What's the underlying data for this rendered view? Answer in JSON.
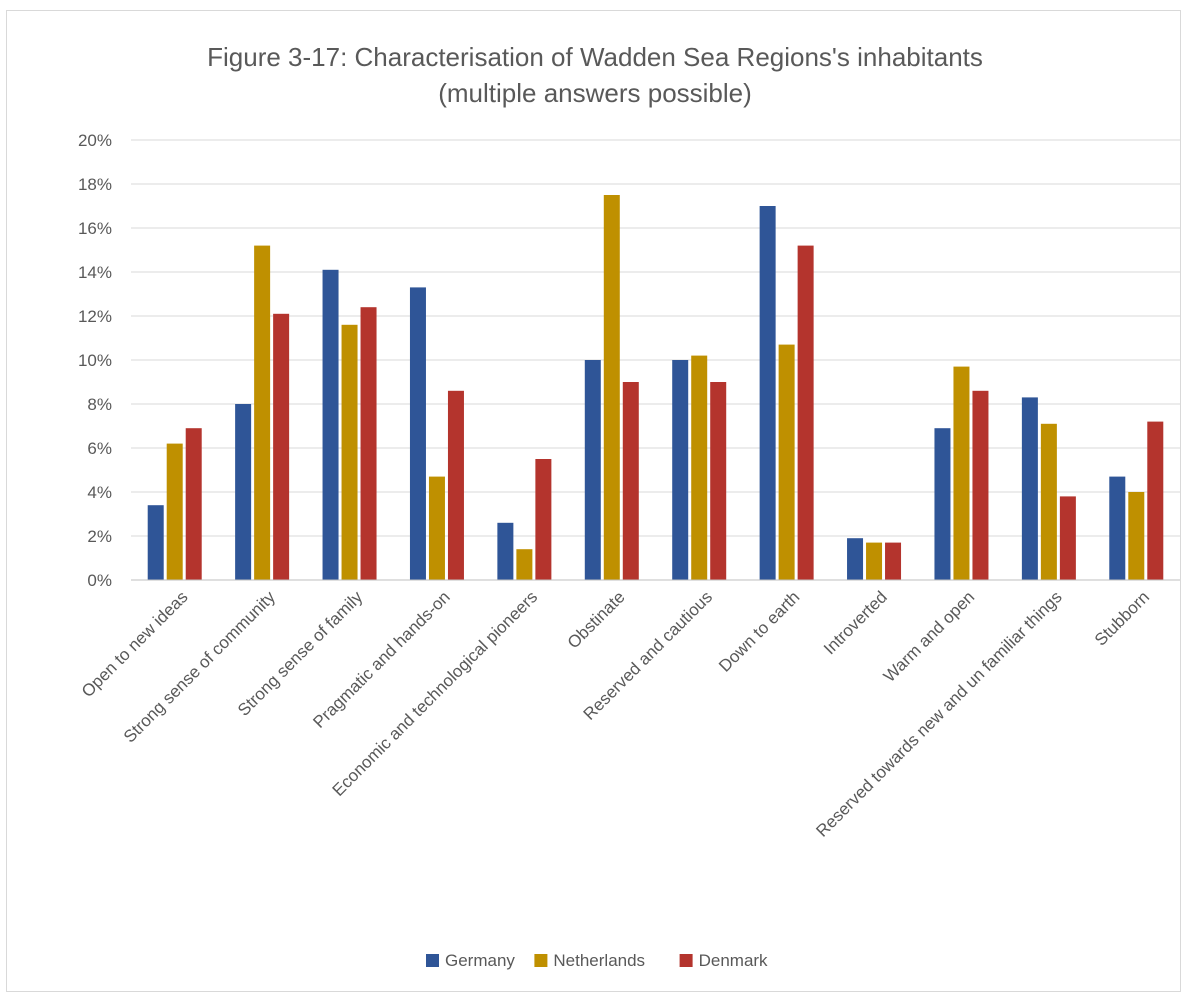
{
  "chart_data": {
    "type": "bar",
    "title_line1": "Figure 3-17: Characterisation of Wadden Sea Regions's inhabitants",
    "title_line2": "(multiple answers possible)",
    "xlabel": "",
    "ylabel": "",
    "ylim": [
      0,
      20
    ],
    "y_unit": "%",
    "y_ticks": [
      "0%",
      "2%",
      "4%",
      "6%",
      "8%",
      "10%",
      "12%",
      "14%",
      "16%",
      "18%",
      "20%"
    ],
    "grid": true,
    "legend_position": "bottom",
    "categories": [
      "Open to new ideas",
      "Strong sense of community",
      "Strong sense of family",
      "Pragmatic  and hands-on",
      "Economic and technological pioneers",
      "Obstinate",
      "Reserved and cautious",
      "Down to earth",
      "Introverted",
      "Warm and open",
      "Reserved towards new and un familiar things",
      "Stubborn"
    ],
    "series": [
      {
        "name": "Germany",
        "color": "#2f5597",
        "values": [
          3.4,
          8.0,
          14.1,
          13.3,
          2.6,
          10.0,
          10.0,
          17.0,
          1.9,
          6.9,
          8.3,
          4.7
        ]
      },
      {
        "name": "Netherlands",
        "color": "#bf9000",
        "values": [
          6.2,
          15.2,
          11.6,
          4.7,
          1.4,
          17.5,
          10.2,
          10.7,
          1.7,
          9.7,
          7.1,
          4.0
        ]
      },
      {
        "name": "Denmark",
        "color": "#b4342d",
        "values": [
          6.9,
          12.1,
          12.4,
          8.6,
          5.5,
          9.0,
          9.0,
          15.2,
          1.7,
          8.6,
          3.8,
          7.2
        ]
      }
    ]
  }
}
